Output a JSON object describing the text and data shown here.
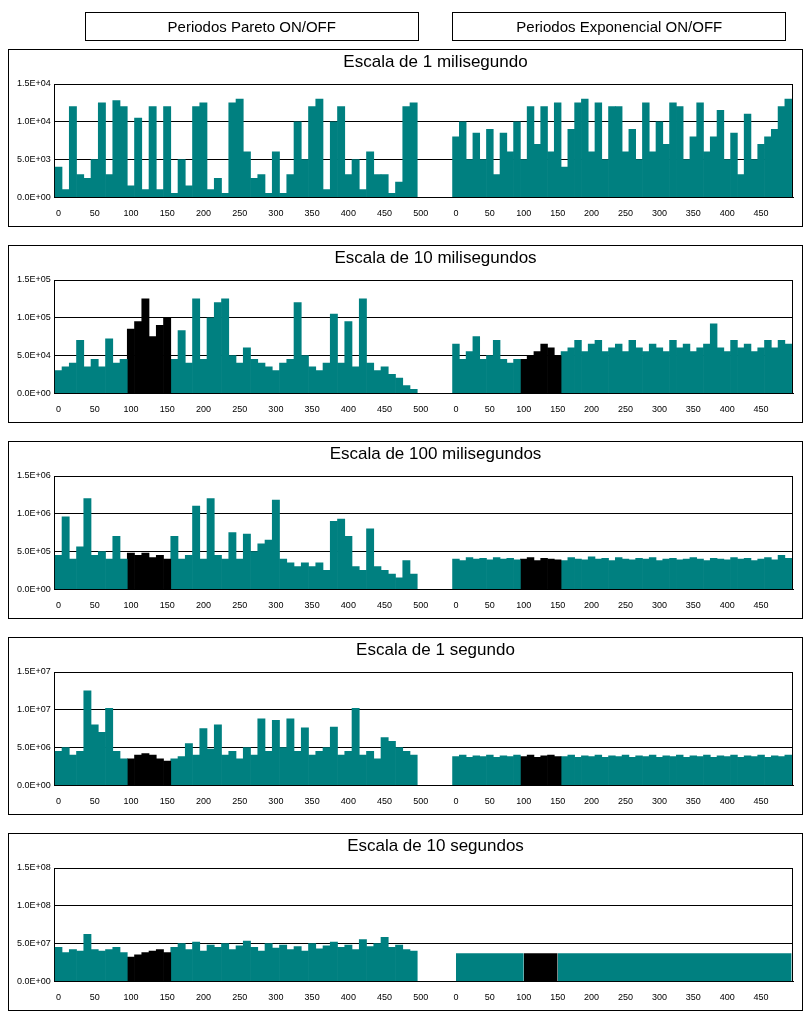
{
  "chart_data": [
    {
      "type": "other",
      "annotations": [
        "Periodos Pareto ON/OFF",
        "Periodos Exponencial ON/OFF"
      ]
    },
    {
      "type": "bar",
      "title": "Escala de 1 milisegundo",
      "xlim": [
        -5,
        525
      ],
      "ylim": [
        0,
        15000
      ],
      "grid": "y",
      "legend": false,
      "yticks": [
        {
          "value": 0,
          "label": "0.0E+00"
        },
        {
          "value": 5000,
          "label": "5.0E+03"
        },
        {
          "value": 10000,
          "label": "1.0E+04"
        },
        {
          "value": 15000,
          "label": "1.5E+04"
        }
      ],
      "xticks": [
        0,
        50,
        100,
        150,
        200,
        250,
        300,
        350,
        400,
        450,
        500
      ],
      "series": [
        {
          "color": "#008080",
          "x": [
            0,
            10,
            20,
            30,
            40,
            50,
            60,
            70,
            80,
            90,
            100,
            110,
            120,
            130,
            140,
            150,
            160,
            170,
            180,
            190,
            200,
            210,
            220,
            230,
            240,
            250,
            260,
            270,
            280,
            290,
            300,
            310,
            320,
            330,
            340,
            350,
            360,
            370,
            380,
            390,
            400,
            410,
            420,
            430,
            440,
            450,
            460,
            470,
            480,
            490
          ],
          "values": [
            4000,
            1000,
            12000,
            3000,
            2500,
            5000,
            12500,
            3000,
            12800,
            12000,
            1500,
            10500,
            1000,
            12000,
            1000,
            12000,
            500,
            5000,
            1500,
            12000,
            12500,
            1000,
            2500,
            500,
            12500,
            13000,
            6000,
            2500,
            3000,
            500,
            6000,
            500,
            3000,
            10000,
            5000,
            12000,
            13000,
            1000,
            10000,
            12000,
            3000,
            5000,
            1000,
            6000,
            3000,
            3000,
            500,
            2000,
            12000,
            12500
          ]
        }
      ]
    },
    {
      "type": "bar",
      "xlim": [
        -25,
        497
      ],
      "ylim": [
        0,
        15000
      ],
      "grid": "y",
      "legend": false,
      "tick_labels": "x",
      "yticks": [
        {
          "value": 0,
          "label": null
        },
        {
          "value": 5000,
          "label": null
        },
        {
          "value": 10000,
          "label": null
        },
        {
          "value": 15000,
          "label": null
        }
      ],
      "xticks": [
        0,
        50,
        100,
        150,
        200,
        250,
        300,
        350,
        400,
        450
      ],
      "series": [
        {
          "color": "#008080",
          "x": [
            0,
            10,
            20,
            30,
            40,
            50,
            60,
            70,
            80,
            90,
            100,
            110,
            120,
            130,
            140,
            150,
            160,
            170,
            180,
            190,
            200,
            210,
            220,
            230,
            240,
            250,
            260,
            270,
            280,
            290,
            300,
            310,
            320,
            330,
            340,
            350,
            360,
            370,
            380,
            390,
            400,
            410,
            420,
            430,
            440,
            450,
            460,
            470,
            480,
            490
          ],
          "values": [
            8000,
            10000,
            5000,
            8500,
            5000,
            9000,
            3000,
            8500,
            6000,
            10000,
            5000,
            12000,
            7000,
            12000,
            6000,
            12500,
            4000,
            9000,
            12500,
            13000,
            6000,
            12500,
            5000,
            12000,
            12000,
            6000,
            9000,
            5000,
            12500,
            6000,
            10000,
            7000,
            12500,
            12000,
            5000,
            8000,
            12500,
            6000,
            8000,
            11500,
            5000,
            8500,
            3000,
            11000,
            5000,
            7000,
            8000,
            9000,
            12000,
            13000
          ]
        }
      ]
    },
    {
      "type": "bar",
      "title": "Escala de 10 milisegundos",
      "xlim": [
        -5,
        525
      ],
      "ylim": [
        0,
        150000
      ],
      "grid": "y",
      "legend": false,
      "yticks": [
        {
          "value": 0,
          "label": "0.0E+00"
        },
        {
          "value": 50000,
          "label": "5.0E+04"
        },
        {
          "value": 100000,
          "label": "1.0E+05"
        },
        {
          "value": 150000,
          "label": "1.5E+05"
        }
      ],
      "xticks": [
        0,
        50,
        100,
        150,
        200,
        250,
        300,
        350,
        400,
        450,
        500
      ],
      "series": [
        {
          "color": "#008080",
          "x": [
            0,
            10,
            20,
            30,
            40,
            50,
            60,
            70,
            80,
            90
          ],
          "values": [
            30000,
            35000,
            40000,
            70000,
            35000,
            45000,
            35000,
            72000,
            40000,
            45000
          ]
        },
        {
          "color": "#000000",
          "x": [
            100,
            110,
            120,
            130,
            140,
            150
          ],
          "values": [
            85000,
            95000,
            125000,
            75000,
            90000,
            100000
          ]
        },
        {
          "color": "#008080",
          "x": [
            160,
            170,
            180,
            190,
            200,
            210,
            220,
            230,
            240,
            250,
            260,
            270,
            280,
            290,
            300,
            310,
            320,
            330,
            340,
            350,
            360,
            370,
            380,
            390,
            400,
            410,
            420,
            430,
            440,
            450,
            460,
            470,
            480,
            490
          ],
          "values": [
            45000,
            83000,
            40000,
            125000,
            45000,
            100000,
            120000,
            125000,
            50000,
            40000,
            60000,
            45000,
            40000,
            35000,
            30000,
            40000,
            45000,
            120000,
            50000,
            35000,
            30000,
            40000,
            105000,
            40000,
            95000,
            35000,
            125000,
            40000,
            30000,
            35000,
            25000,
            20000,
            10000,
            5000
          ]
        }
      ]
    },
    {
      "type": "bar",
      "xlim": [
        -25,
        497
      ],
      "ylim": [
        0,
        150000
      ],
      "grid": "y",
      "legend": false,
      "tick_labels": "x",
      "yticks": [
        {
          "value": 0,
          "label": null
        },
        {
          "value": 50000,
          "label": null
        },
        {
          "value": 100000,
          "label": null
        },
        {
          "value": 150000,
          "label": null
        }
      ],
      "xticks": [
        0,
        50,
        100,
        150,
        200,
        250,
        300,
        350,
        400,
        450
      ],
      "series": [
        {
          "color": "#008080",
          "x": [
            0,
            10,
            20,
            30,
            40,
            50,
            60,
            70,
            80,
            90
          ],
          "values": [
            65000,
            45000,
            55000,
            75000,
            45000,
            50000,
            70000,
            45000,
            40000,
            45000
          ]
        },
        {
          "color": "#000000",
          "x": [
            100,
            110,
            120,
            130,
            140,
            150
          ],
          "values": [
            45000,
            50000,
            55000,
            65000,
            60000,
            50000
          ]
        },
        {
          "color": "#008080",
          "x": [
            160,
            170,
            180,
            190,
            200,
            210,
            220,
            230,
            240,
            250,
            260,
            270,
            280,
            290,
            300,
            310,
            320,
            330,
            340,
            350,
            360,
            370,
            380,
            390,
            400,
            410,
            420,
            430,
            440,
            450,
            460,
            470,
            480,
            490
          ],
          "values": [
            55000,
            60000,
            70000,
            55000,
            65000,
            70000,
            55000,
            60000,
            65000,
            55000,
            70000,
            60000,
            55000,
            65000,
            60000,
            55000,
            70000,
            60000,
            65000,
            55000,
            60000,
            65000,
            92000,
            60000,
            55000,
            70000,
            60000,
            65000,
            55000,
            60000,
            70000,
            60000,
            70000,
            65000
          ]
        }
      ]
    },
    {
      "type": "bar",
      "title": "Escala de 100 milisegundos",
      "xlim": [
        -5,
        525
      ],
      "ylim": [
        0,
        1500000
      ],
      "grid": "y",
      "legend": false,
      "yticks": [
        {
          "value": 0,
          "label": "0.0E+00"
        },
        {
          "value": 500000,
          "label": "5.0E+05"
        },
        {
          "value": 1000000,
          "label": "1.0E+06"
        },
        {
          "value": 1500000,
          "label": "1.5E+06"
        }
      ],
      "xticks": [
        0,
        50,
        100,
        150,
        200,
        250,
        300,
        350,
        400,
        450,
        500
      ],
      "series": [
        {
          "color": "#008080",
          "x": [
            0,
            10,
            20,
            30,
            40,
            50,
            60,
            70,
            80,
            90
          ],
          "values": [
            450000,
            960000,
            400000,
            560000,
            1200000,
            450000,
            500000,
            400000,
            700000,
            400000
          ]
        },
        {
          "color": "#000000",
          "x": [
            100,
            110,
            120,
            130,
            140,
            150
          ],
          "values": [
            480000,
            450000,
            480000,
            420000,
            450000,
            400000
          ]
        },
        {
          "color": "#008080",
          "x": [
            160,
            170,
            180,
            190,
            200,
            210,
            220,
            230,
            240,
            250,
            260,
            270,
            280,
            290,
            300,
            310,
            320,
            330,
            340,
            350,
            360,
            370,
            380,
            390,
            400,
            410,
            420,
            430,
            440,
            450,
            460,
            470,
            480,
            490
          ],
          "values": [
            700000,
            400000,
            450000,
            1100000,
            400000,
            1200000,
            450000,
            400000,
            750000,
            400000,
            730000,
            500000,
            600000,
            650000,
            1180000,
            400000,
            350000,
            300000,
            350000,
            300000,
            350000,
            250000,
            900000,
            930000,
            700000,
            300000,
            250000,
            800000,
            300000,
            250000,
            200000,
            150000,
            380000,
            200000
          ]
        }
      ]
    },
    {
      "type": "bar",
      "xlim": [
        -25,
        497
      ],
      "ylim": [
        0,
        1500000
      ],
      "grid": "y",
      "legend": false,
      "tick_labels": "x",
      "yticks": [
        {
          "value": 0,
          "label": null
        },
        {
          "value": 500000,
          "label": null
        },
        {
          "value": 1000000,
          "label": null
        },
        {
          "value": 1500000,
          "label": null
        }
      ],
      "xticks": [
        0,
        50,
        100,
        150,
        200,
        250,
        300,
        350,
        400,
        450
      ],
      "series": [
        {
          "color": "#008080",
          "x": [
            0,
            10,
            20,
            30,
            40,
            50,
            60,
            70,
            80,
            90
          ],
          "values": [
            400000,
            380000,
            420000,
            400000,
            410000,
            390000,
            420000,
            400000,
            410000,
            390000
          ]
        },
        {
          "color": "#000000",
          "x": [
            100,
            110,
            120,
            130,
            140,
            150
          ],
          "values": [
            400000,
            420000,
            380000,
            410000,
            400000,
            390000
          ]
        },
        {
          "color": "#008080",
          "x": [
            160,
            170,
            180,
            190,
            200,
            210,
            220,
            230,
            240,
            250,
            260,
            270,
            280,
            290,
            300,
            310,
            320,
            330,
            340,
            350,
            360,
            370,
            380,
            390,
            400,
            410,
            420,
            430,
            440,
            450,
            460,
            470,
            480,
            490
          ],
          "values": [
            380000,
            420000,
            400000,
            390000,
            430000,
            400000,
            410000,
            380000,
            420000,
            400000,
            390000,
            410000,
            400000,
            420000,
            380000,
            400000,
            410000,
            390000,
            400000,
            420000,
            400000,
            380000,
            410000,
            400000,
            390000,
            420000,
            400000,
            410000,
            380000,
            400000,
            420000,
            390000,
            450000,
            410000
          ]
        }
      ]
    },
    {
      "type": "bar",
      "title": "Escala de 1 segundo",
      "xlim": [
        -5,
        525
      ],
      "ylim": [
        0,
        15000000
      ],
      "grid": "y",
      "legend": false,
      "yticks": [
        {
          "value": 0,
          "label": "0.0E+00"
        },
        {
          "value": 5000000,
          "label": "5.0E+06"
        },
        {
          "value": 10000000,
          "label": "1.0E+07"
        },
        {
          "value": 15000000,
          "label": "1.5E+07"
        }
      ],
      "xticks": [
        0,
        50,
        100,
        150,
        200,
        250,
        300,
        350,
        400,
        450,
        500
      ],
      "series": [
        {
          "color": "#008080",
          "x": [
            0,
            10,
            20,
            30,
            40,
            50,
            60,
            70,
            80,
            90
          ],
          "values": [
            4500000,
            5000000,
            4000000,
            4500000,
            12500000,
            8000000,
            7000000,
            10200000,
            4500000,
            3500000
          ]
        },
        {
          "color": "#000000",
          "x": [
            100,
            110,
            120,
            130,
            140,
            150
          ],
          "values": [
            3500000,
            4000000,
            4200000,
            4000000,
            3500000,
            3200000
          ]
        },
        {
          "color": "#008080",
          "x": [
            160,
            170,
            180,
            190,
            200,
            210,
            220,
            230,
            240,
            250,
            260,
            270,
            280,
            290,
            300,
            310,
            320,
            330,
            340,
            350,
            360,
            370,
            380,
            390,
            400,
            410,
            420,
            430,
            440,
            450,
            460,
            470,
            480,
            490
          ],
          "values": [
            3500000,
            3800000,
            5500000,
            4000000,
            7500000,
            4800000,
            8000000,
            4000000,
            4500000,
            3500000,
            5000000,
            4000000,
            8800000,
            4500000,
            8600000,
            5000000,
            8800000,
            4500000,
            7600000,
            4000000,
            4500000,
            5000000,
            7700000,
            4000000,
            4500000,
            10200000,
            4000000,
            4500000,
            3500000,
            6300000,
            5800000,
            5000000,
            4500000,
            4000000
          ]
        }
      ]
    },
    {
      "type": "bar",
      "xlim": [
        -25,
        497
      ],
      "ylim": [
        0,
        15000000
      ],
      "grid": "y",
      "legend": false,
      "tick_labels": "x",
      "yticks": [
        {
          "value": 0,
          "label": null
        },
        {
          "value": 5000000,
          "label": null
        },
        {
          "value": 10000000,
          "label": null
        },
        {
          "value": 15000000,
          "label": null
        }
      ],
      "xticks": [
        0,
        50,
        100,
        150,
        200,
        250,
        300,
        350,
        400,
        450
      ],
      "series": [
        {
          "color": "#008080",
          "x": [
            0,
            10,
            20,
            30,
            40,
            50,
            60,
            70,
            80,
            90
          ],
          "values": [
            3800000,
            4000000,
            3700000,
            3900000,
            3800000,
            4000000,
            3700000,
            3900000,
            3800000,
            4000000
          ]
        },
        {
          "color": "#000000",
          "x": [
            100,
            110,
            120,
            130,
            140,
            150
          ],
          "values": [
            3800000,
            4000000,
            3700000,
            3900000,
            4000000,
            3800000
          ]
        },
        {
          "color": "#008080",
          "x": [
            160,
            170,
            180,
            190,
            200,
            210,
            220,
            230,
            240,
            250,
            260,
            270,
            280,
            290,
            300,
            310,
            320,
            330,
            340,
            350,
            360,
            370,
            380,
            390,
            400,
            410,
            420,
            430,
            440,
            450,
            460,
            470,
            480,
            490
          ],
          "values": [
            3800000,
            4000000,
            3700000,
            3900000,
            3800000,
            4000000,
            3700000,
            3900000,
            3800000,
            4000000,
            3700000,
            3900000,
            3800000,
            4000000,
            3700000,
            3900000,
            3800000,
            4000000,
            3700000,
            3900000,
            3800000,
            4000000,
            3700000,
            3900000,
            3800000,
            4000000,
            3700000,
            3900000,
            3800000,
            4000000,
            3700000,
            3900000,
            3800000,
            4000000
          ]
        }
      ]
    },
    {
      "type": "bar",
      "title": "Escala de 10 segundos",
      "xlim": [
        -5,
        525
      ],
      "ylim": [
        0,
        150000000
      ],
      "grid": "y",
      "legend": false,
      "yticks": [
        {
          "value": 0,
          "label": "0.0E+00"
        },
        {
          "value": 50000000,
          "label": "5.0E+07"
        },
        {
          "value": 100000000,
          "label": "1.0E+08"
        },
        {
          "value": 150000000,
          "label": "1.5E+08"
        }
      ],
      "xticks": [
        0,
        50,
        100,
        150,
        200,
        250,
        300,
        350,
        400,
        450,
        500
      ],
      "series": [
        {
          "color": "#008080",
          "x": [
            0,
            10,
            20,
            30,
            40,
            50,
            60,
            70,
            80,
            90
          ],
          "values": [
            45000000,
            38000000,
            42000000,
            40000000,
            62000000,
            42000000,
            40000000,
            42000000,
            45000000,
            38000000
          ]
        },
        {
          "color": "#000000",
          "x": [
            100,
            110,
            120,
            130,
            140,
            150
          ],
          "values": [
            32000000,
            35000000,
            38000000,
            40000000,
            42000000,
            38000000
          ]
        },
        {
          "color": "#008080",
          "x": [
            160,
            170,
            180,
            190,
            200,
            210,
            220,
            230,
            240,
            250,
            260,
            270,
            280,
            290,
            300,
            310,
            320,
            330,
            340,
            350,
            360,
            370,
            380,
            390,
            400,
            410,
            420,
            430,
            440,
            450,
            460,
            470,
            480,
            490
          ],
          "values": [
            45000000,
            50000000,
            42000000,
            52000000,
            40000000,
            48000000,
            45000000,
            50000000,
            42000000,
            47000000,
            53000000,
            45000000,
            40000000,
            50000000,
            44000000,
            48000000,
            42000000,
            46000000,
            40000000,
            50000000,
            43000000,
            47000000,
            52000000,
            45000000,
            48000000,
            42000000,
            55000000,
            46000000,
            50000000,
            58000000,
            45000000,
            48000000,
            42000000,
            40000000
          ]
        }
      ]
    },
    {
      "type": "bar",
      "xlim": [
        -25,
        497
      ],
      "ylim": [
        0,
        150000000
      ],
      "grid": "y",
      "legend": false,
      "tick_labels": "x",
      "yticks": [
        {
          "value": 0,
          "label": null
        },
        {
          "value": 50000000,
          "label": null
        },
        {
          "value": 100000000,
          "label": null
        },
        {
          "value": 150000000,
          "label": null
        }
      ],
      "xticks": [
        0,
        50,
        100,
        150,
        200,
        250,
        300,
        350,
        400,
        450
      ],
      "series": [
        {
          "type": "area",
          "color": "#008080",
          "x": [
            0,
            100
          ],
          "values": [
            37000000,
            37000000
          ]
        },
        {
          "type": "area",
          "color": "#000000",
          "x": [
            100,
            150
          ],
          "values": [
            37000000,
            37000000
          ]
        },
        {
          "type": "area",
          "color": "#008080",
          "x": [
            150,
            495
          ],
          "values": [
            37000000,
            37000000
          ]
        }
      ]
    }
  ]
}
